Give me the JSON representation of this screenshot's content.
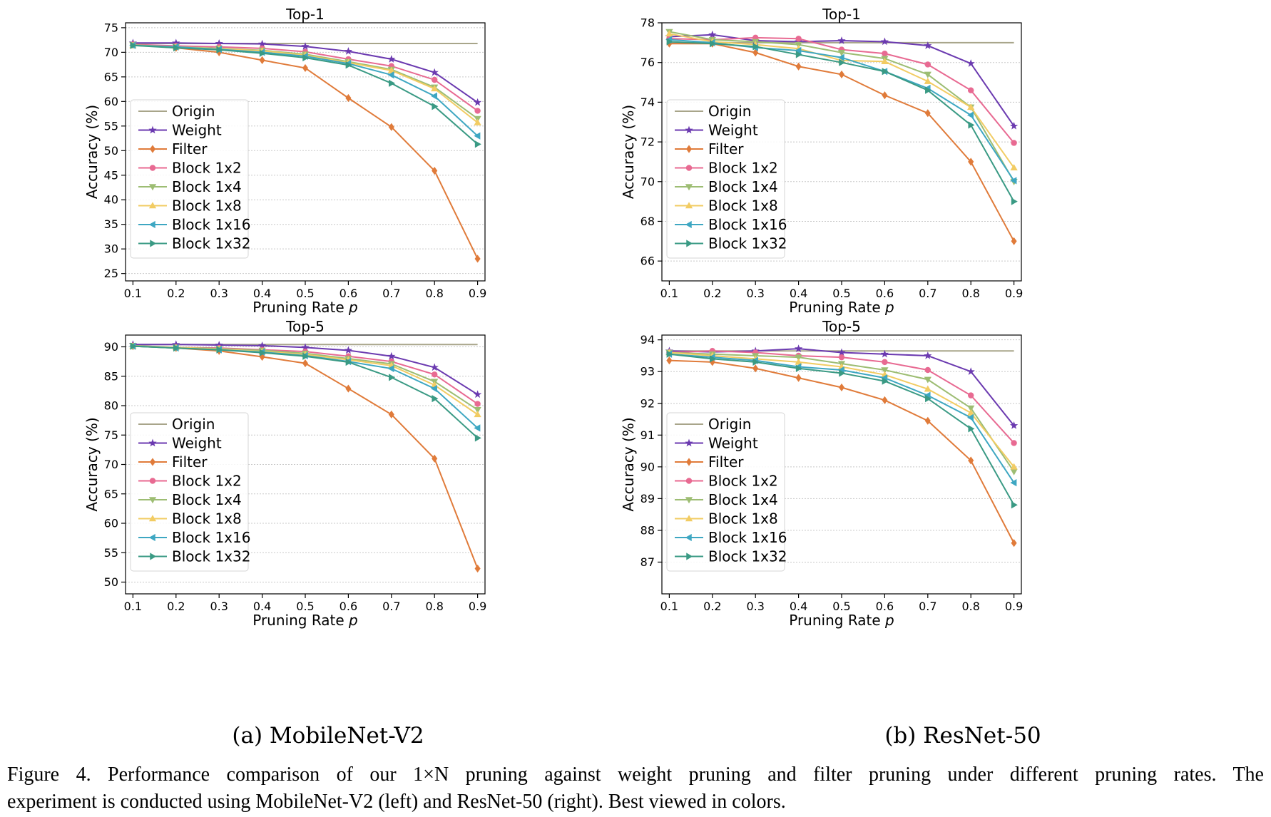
{
  "colors": {
    "Origin": "#a8a58a",
    "Weight": "#6b3ab0",
    "Filter": "#e07b3a",
    "Block 1x2": "#e86a92",
    "Block 1x4": "#9dbd73",
    "Block 1x8": "#f2cc63",
    "Block 1x16": "#3ea7c2",
    "Block 1x32": "#3a9a84"
  },
  "markers": {
    "Origin": "none",
    "Weight": "star",
    "Filter": "diamond",
    "Block 1x2": "circle",
    "Block 1x4": "triangle-down",
    "Block 1x8": "triangle-up",
    "Block 1x16": "triangle-left",
    "Block 1x32": "triangle-right"
  },
  "captions": {
    "left": "(a) MobileNet-V2",
    "right": "(b) ResNet-50",
    "figure_line1": "Figure 4.  Performance comparison of our 1×N pruning against weight pruning and filter pruning under different pruning rates.  The",
    "figure_line2": "experiment is conducted using MobileNet-V2 (left) and ResNet-50 (right). Best viewed in colors."
  },
  "chart_data": [
    {
      "type": "line",
      "title": "Top-1",
      "xlabel": "Pruning Rate p",
      "ylabel": "Accuracy (%)",
      "x": [
        0.1,
        0.2,
        0.3,
        0.4,
        0.5,
        0.6,
        0.7,
        0.8,
        0.9
      ],
      "xticks": [
        "0.1",
        "0.2",
        "0.3",
        "0.4",
        "0.5",
        "0.6",
        "0.7",
        "0.8",
        "0.9"
      ],
      "ylim": [
        23.5,
        76
      ],
      "yticks": [
        25,
        30,
        35,
        40,
        45,
        50,
        55,
        60,
        65,
        70,
        75
      ],
      "grid": true,
      "legend": "center-left",
      "series": [
        {
          "name": "Origin",
          "values": [
            71.8,
            71.8,
            71.8,
            71.8,
            71.8,
            71.8,
            71.8,
            71.8,
            71.8
          ]
        },
        {
          "name": "Weight",
          "values": [
            71.9,
            71.9,
            71.8,
            71.7,
            71.2,
            70.2,
            68.6,
            65.9,
            59.8
          ]
        },
        {
          "name": "Filter",
          "values": [
            71.5,
            70.9,
            70.0,
            68.4,
            66.8,
            60.7,
            54.8,
            45.9,
            28.0
          ]
        },
        {
          "name": "Block 1x2",
          "values": [
            71.6,
            71.3,
            71.1,
            70.8,
            70.1,
            68.6,
            67.2,
            64.4,
            58.1
          ]
        },
        {
          "name": "Block 1x4",
          "values": [
            71.5,
            71.1,
            70.8,
            70.4,
            69.6,
            68.1,
            66.5,
            62.9,
            56.5
          ]
        },
        {
          "name": "Block 1x8",
          "values": [
            71.4,
            71.1,
            70.7,
            70.3,
            69.4,
            67.9,
            66.3,
            62.6,
            55.7
          ]
        },
        {
          "name": "Block 1x16",
          "values": [
            71.4,
            71.1,
            70.6,
            70.0,
            69.2,
            67.7,
            65.4,
            61.1,
            53.0
          ]
        },
        {
          "name": "Block 1x32",
          "values": [
            71.4,
            70.9,
            70.5,
            69.8,
            68.9,
            67.4,
            63.7,
            59.0,
            51.3
          ]
        }
      ]
    },
    {
      "type": "line",
      "title": "Top-1",
      "xlabel": "Pruning Rate p",
      "ylabel": "Accuracy (%)",
      "x": [
        0.1,
        0.2,
        0.3,
        0.4,
        0.5,
        0.6,
        0.7,
        0.8,
        0.9
      ],
      "xticks": [
        "0.1",
        "0.2",
        "0.3",
        "0.4",
        "0.5",
        "0.6",
        "0.7",
        "0.8",
        "0.9"
      ],
      "ylim": [
        65,
        78
      ],
      "yticks": [
        66,
        68,
        70,
        72,
        74,
        76,
        78
      ],
      "grid": true,
      "legend": "center-left",
      "series": [
        {
          "name": "Origin",
          "values": [
            77.0,
            77.0,
            77.0,
            77.0,
            77.0,
            77.0,
            77.0,
            77.0,
            77.0
          ]
        },
        {
          "name": "Weight",
          "values": [
            77.3,
            77.4,
            77.1,
            77.05,
            77.1,
            77.05,
            76.85,
            75.95,
            72.8
          ]
        },
        {
          "name": "Filter",
          "values": [
            76.95,
            76.95,
            76.5,
            75.8,
            75.4,
            74.35,
            73.45,
            71.0,
            67.0
          ]
        },
        {
          "name": "Block 1x2",
          "values": [
            77.2,
            77.15,
            77.25,
            77.2,
            76.65,
            76.45,
            75.9,
            74.6,
            71.95
          ]
        },
        {
          "name": "Block 1x4",
          "values": [
            77.55,
            77.15,
            77.05,
            76.9,
            76.5,
            76.2,
            75.4,
            73.75,
            70.0
          ]
        },
        {
          "name": "Block 1x8",
          "values": [
            77.45,
            77.05,
            76.9,
            76.7,
            76.1,
            76.05,
            75.05,
            73.75,
            70.7
          ]
        },
        {
          "name": "Block 1x16",
          "values": [
            77.15,
            77.0,
            76.75,
            76.6,
            76.25,
            75.55,
            74.7,
            73.35,
            70.05
          ]
        },
        {
          "name": "Block 1x32",
          "values": [
            77.05,
            76.95,
            76.8,
            76.4,
            76.0,
            75.55,
            74.6,
            72.85,
            69.0
          ]
        }
      ]
    },
    {
      "type": "line",
      "title": "Top-5",
      "xlabel": "Pruning Rate p",
      "ylabel": "Accuracy (%)",
      "x": [
        0.1,
        0.2,
        0.3,
        0.4,
        0.5,
        0.6,
        0.7,
        0.8,
        0.9
      ],
      "xticks": [
        "0.1",
        "0.2",
        "0.3",
        "0.4",
        "0.5",
        "0.6",
        "0.7",
        "0.8",
        "0.9"
      ],
      "ylim": [
        48,
        92
      ],
      "yticks": [
        50,
        55,
        60,
        65,
        70,
        75,
        80,
        85,
        90
      ],
      "grid": true,
      "legend": "center-left",
      "series": [
        {
          "name": "Origin",
          "values": [
            90.4,
            90.4,
            90.4,
            90.4,
            90.4,
            90.4,
            90.4,
            90.4,
            90.4
          ]
        },
        {
          "name": "Weight",
          "values": [
            90.4,
            90.4,
            90.3,
            90.2,
            89.9,
            89.4,
            88.4,
            86.5,
            81.9
          ]
        },
        {
          "name": "Filter",
          "values": [
            90.1,
            89.8,
            89.3,
            88.3,
            87.2,
            82.9,
            78.5,
            71.0,
            52.3
          ]
        },
        {
          "name": "Block 1x2",
          "values": [
            90.2,
            89.9,
            89.8,
            89.5,
            89.2,
            88.4,
            87.5,
            85.3,
            80.3
          ]
        },
        {
          "name": "Block 1x4",
          "values": [
            90.2,
            89.9,
            89.7,
            89.4,
            88.9,
            88.0,
            87.1,
            84.1,
            79.3
          ]
        },
        {
          "name": "Block 1x8",
          "values": [
            90.1,
            89.9,
            89.6,
            89.2,
            88.7,
            87.8,
            86.8,
            83.5,
            78.5
          ]
        },
        {
          "name": "Block 1x16",
          "values": [
            90.1,
            89.8,
            89.5,
            89.1,
            88.5,
            87.5,
            86.3,
            82.9,
            76.2
          ]
        },
        {
          "name": "Block 1x32",
          "values": [
            90.1,
            89.8,
            89.5,
            89.0,
            88.4,
            87.4,
            84.8,
            81.2,
            74.5
          ]
        }
      ]
    },
    {
      "type": "line",
      "title": "Top-5",
      "xlabel": "Pruning Rate p",
      "ylabel": "Accuracy (%)",
      "x": [
        0.1,
        0.2,
        0.3,
        0.4,
        0.5,
        0.6,
        0.7,
        0.8,
        0.9
      ],
      "xticks": [
        "0.1",
        "0.2",
        "0.3",
        "0.4",
        "0.5",
        "0.6",
        "0.7",
        "0.8",
        "0.9"
      ],
      "ylim": [
        86.0,
        94.15
      ],
      "yticks": [
        87,
        88,
        89,
        90,
        91,
        92,
        93,
        94
      ],
      "grid": true,
      "legend": "center-left",
      "series": [
        {
          "name": "Origin",
          "values": [
            93.65,
            93.65,
            93.65,
            93.65,
            93.65,
            93.65,
            93.65,
            93.65,
            93.65
          ]
        },
        {
          "name": "Weight",
          "values": [
            93.65,
            93.62,
            93.65,
            93.72,
            93.6,
            93.55,
            93.5,
            93.0,
            91.3
          ]
        },
        {
          "name": "Filter",
          "values": [
            93.35,
            93.3,
            93.1,
            92.8,
            92.5,
            92.1,
            91.45,
            90.2,
            87.6
          ]
        },
        {
          "name": "Block 1x2",
          "values": [
            93.6,
            93.65,
            93.6,
            93.5,
            93.45,
            93.3,
            93.05,
            92.25,
            90.75
          ]
        },
        {
          "name": "Block 1x4",
          "values": [
            93.6,
            93.55,
            93.5,
            93.45,
            93.25,
            93.05,
            92.75,
            91.85,
            89.85
          ]
        },
        {
          "name": "Block 1x8",
          "values": [
            93.6,
            93.5,
            93.4,
            93.3,
            93.15,
            92.9,
            92.45,
            91.7,
            90.0
          ]
        },
        {
          "name": "Block 1x16",
          "values": [
            93.55,
            93.45,
            93.35,
            93.15,
            93.05,
            92.8,
            92.25,
            91.55,
            89.5
          ]
        },
        {
          "name": "Block 1x32",
          "values": [
            93.55,
            93.4,
            93.3,
            93.1,
            92.95,
            92.7,
            92.15,
            91.2,
            88.8
          ]
        }
      ]
    }
  ]
}
